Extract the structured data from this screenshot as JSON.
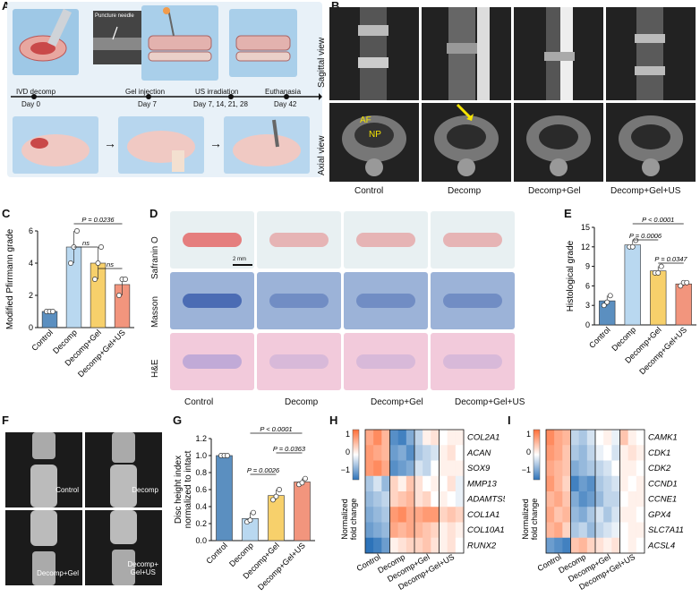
{
  "panels": {
    "A": "A",
    "B": "B",
    "C": "C",
    "D": "D",
    "E": "E",
    "F": "F",
    "G": "G",
    "H": "H",
    "I": "I"
  },
  "panelA": {
    "needle_label": "Puncture needle",
    "timeline": [
      {
        "event": "IVD decomp",
        "day": "Day 0"
      },
      {
        "event": "Gel injection",
        "day": "Day 7"
      },
      {
        "event": "US irradiation",
        "day": "Day 7, 14, 21, 28"
      },
      {
        "event": "Euthanasia",
        "day": "Day 42"
      }
    ]
  },
  "panelB": {
    "row_labels": [
      "Sagittal view",
      "Axial view"
    ],
    "col_labels": [
      "Control",
      "Decomp",
      "Decomp+Gel",
      "Decomp+Gel+US"
    ],
    "annotations": [
      "AF",
      "NP"
    ]
  },
  "groups": [
    "Control",
    "Decomp",
    "Decomp+Gel",
    "Decomp+Gel+US"
  ],
  "colors": {
    "control": "#5b8fc0",
    "decomp": "#b9d8f0",
    "gel": "#f7d06b",
    "gelus": "#f2957d",
    "accent": "#2a5d93"
  },
  "panelD": {
    "row_labels": [
      "Safranin O",
      "Masson",
      "H&E"
    ],
    "col_labels": [
      "Control",
      "Decomp",
      "Decomp+Gel",
      "Decomp+Gel+US"
    ],
    "scale_bar": "2 mm"
  },
  "panelF": {
    "labels": [
      "Control",
      "Decomp",
      "Decomp+Gel",
      "Decomp+\nGel+US"
    ]
  },
  "chartC": {
    "type": "bar",
    "ylabel": "Modified Pfirrmann grade",
    "ylim": [
      0,
      6
    ],
    "yticks": [
      "0",
      "2",
      "4",
      "6"
    ],
    "categories": [
      "Control",
      "Decomp",
      "Decomp+Gel",
      "Decomp+Gel+US"
    ],
    "values": [
      1,
      5,
      4,
      2.67
    ],
    "points": [
      [
        1,
        1,
        1
      ],
      [
        4,
        5,
        6
      ],
      [
        3,
        4,
        5
      ],
      [
        2,
        3,
        3
      ]
    ],
    "sig": [
      {
        "text": "P = 0.0236",
        "from": 1,
        "to": 3
      },
      {
        "text": "ns",
        "from": 1,
        "to": 2
      },
      {
        "text": "ns",
        "from": 2,
        "to": 3
      }
    ]
  },
  "chartE": {
    "type": "bar",
    "ylabel": "Histological grade",
    "ylim": [
      0,
      15
    ],
    "yticks": [
      "0",
      "3",
      "6",
      "9",
      "12",
      "15"
    ],
    "categories": [
      "Control",
      "Decomp",
      "Decomp+Gel",
      "Decomp+Gel+US"
    ],
    "values": [
      3.7,
      12.3,
      8.3,
      6.3
    ],
    "points": [
      [
        3,
        3.5,
        4.5
      ],
      [
        12,
        12,
        13
      ],
      [
        8,
        8,
        9
      ],
      [
        6,
        6.5,
        6.5
      ]
    ],
    "sig": [
      {
        "text": "P < 0.0001",
        "from": 1,
        "to": 3
      },
      {
        "text": "P = 0.0006",
        "from": 1,
        "to": 2
      },
      {
        "text": "P = 0.0347",
        "from": 2,
        "to": 3
      }
    ]
  },
  "chartG": {
    "type": "bar",
    "ylabel": "Disc height index normalized to intact",
    "ylim": [
      0,
      1.2
    ],
    "yticks": [
      "0.0",
      "0.2",
      "0.4",
      "0.6",
      "0.8",
      "1.0",
      "1.2"
    ],
    "categories": [
      "Control",
      "Decomp",
      "Decomp+Gel",
      "Decomp+Gel+US"
    ],
    "values": [
      1.0,
      0.26,
      0.53,
      0.69
    ],
    "points": [
      [
        1,
        1,
        1
      ],
      [
        0.22,
        0.24,
        0.33
      ],
      [
        0.48,
        0.52,
        0.6
      ],
      [
        0.66,
        0.68,
        0.73
      ]
    ],
    "sig": [
      {
        "text": "P < 0.0001",
        "from": 1,
        "to": 3
      },
      {
        "text": "P = 0.0363",
        "from": 2,
        "to": 3
      },
      {
        "text": "P = 0.0026",
        "from": 1,
        "to": 2
      }
    ]
  },
  "heatH": {
    "type": "heatmap",
    "genes": [
      "COL2A1",
      "ACAN",
      "SOX9",
      "MMP13",
      "ADAMTS5",
      "COL1A1",
      "COL10A1",
      "RUNX2"
    ],
    "legend_title": "Normalized fold change",
    "legend_ticks": [
      "1",
      "0",
      "−1"
    ],
    "categories": [
      "Control",
      "Decomp",
      "Decomp+Gel",
      "Decomp+Gel+US"
    ],
    "values": [
      [
        0.6,
        0.8,
        0.5,
        -0.8,
        -0.9,
        -0.6,
        -0.3,
        0.1,
        0.2,
        0.0,
        0.1,
        0.1
      ],
      [
        0.7,
        0.6,
        0.5,
        -0.7,
        -0.6,
        -0.8,
        -0.4,
        -0.3,
        -0.2,
        0.1,
        0.2,
        0.0
      ],
      [
        0.7,
        0.8,
        0.6,
        -0.8,
        -0.7,
        -0.6,
        -0.2,
        -0.3,
        0.0,
        0.1,
        0.1,
        0.1
      ],
      [
        -0.4,
        -0.2,
        -0.5,
        0.3,
        0.1,
        0.4,
        0.2,
        0.0,
        0.1,
        0.0,
        0.2,
        -0.1
      ],
      [
        -0.5,
        -0.4,
        -0.3,
        0.3,
        0.4,
        0.5,
        0.2,
        0.3,
        0.0,
        0.1,
        0.0,
        -0.1
      ],
      [
        -0.6,
        -0.5,
        -0.4,
        0.7,
        0.8,
        0.6,
        0.6,
        0.7,
        0.7,
        0.3,
        0.4,
        0.3
      ],
      [
        -0.7,
        -0.6,
        -0.5,
        0.6,
        0.5,
        0.6,
        0.5,
        0.4,
        0.3,
        0.1,
        0.2,
        0.1
      ],
      [
        -1.0,
        -0.9,
        -0.7,
        0.1,
        0.2,
        0.3,
        0.3,
        0.4,
        0.2,
        0.1,
        0.2,
        0.0
      ]
    ]
  },
  "heatI": {
    "type": "heatmap",
    "genes": [
      "CAMK1",
      "CDK1",
      "CDK2",
      "CCND1",
      "CCNE1",
      "GPX4",
      "SLC7A11",
      "ACSL4"
    ],
    "legend_title": "Normalized fold change",
    "legend_ticks": [
      "1",
      "0",
      "−1"
    ],
    "categories": [
      "Control",
      "Decomp",
      "Decomp+Gel",
      "Decomp+Gel+US"
    ],
    "values": [
      [
        0.8,
        0.6,
        0.5,
        -0.3,
        -0.4,
        -0.2,
        0.0,
        0.1,
        -0.1,
        0.4,
        0.1,
        0.0
      ],
      [
        0.7,
        0.6,
        0.4,
        -0.4,
        -0.5,
        -0.3,
        -0.1,
        0.0,
        -0.2,
        0.1,
        0.2,
        0.1
      ],
      [
        0.6,
        0.5,
        0.4,
        -0.6,
        -0.5,
        -0.4,
        -0.3,
        -0.2,
        0.0,
        0.1,
        0.1,
        0.0
      ],
      [
        0.7,
        0.5,
        0.3,
        -0.9,
        -0.7,
        -0.8,
        -0.4,
        -0.3,
        -0.2,
        0.1,
        0.0,
        0.1
      ],
      [
        0.5,
        0.6,
        0.4,
        -0.6,
        -0.8,
        -0.7,
        -0.5,
        -0.3,
        -0.3,
        0.0,
        0.1,
        0.1
      ],
      [
        0.6,
        0.4,
        0.5,
        -0.5,
        -0.6,
        -0.4,
        -0.2,
        -0.4,
        -0.2,
        0.1,
        0.1,
        0.0
      ],
      [
        0.5,
        0.6,
        0.3,
        -0.4,
        -0.3,
        -0.5,
        -0.3,
        -0.2,
        -0.1,
        0.0,
        0.1,
        0.1
      ],
      [
        -0.7,
        -0.8,
        -0.9,
        0.4,
        0.5,
        0.3,
        0.2,
        0.1,
        0.2,
        0.0,
        0.1,
        0.0
      ]
    ]
  }
}
